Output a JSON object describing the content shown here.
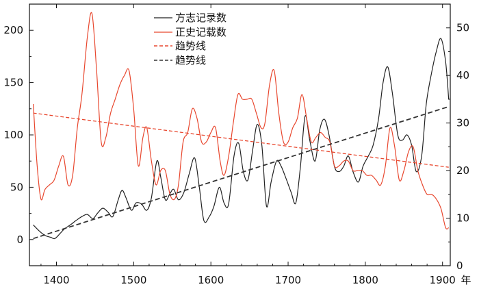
{
  "chart_data": {
    "type": "line",
    "title": "",
    "xlabel": "年",
    "ylabel_left": "",
    "ylabel_right": "",
    "xlim": [
      1365,
      1910
    ],
    "ylim_left": [
      -25,
      225
    ],
    "ylim_right": [
      0,
      55
    ],
    "x_ticks": [
      1400,
      1500,
      1600,
      1700,
      1800,
      1900
    ],
    "y_left_ticks": [
      0,
      50,
      100,
      150,
      200
    ],
    "y_right_ticks": [
      0,
      10,
      20,
      30,
      40,
      50
    ],
    "grid": false,
    "legend_position": "top-center",
    "series": [
      {
        "name": "方志记录数",
        "axis": "left",
        "color": "#222222",
        "style": "solid",
        "x": [
          1370,
          1378,
          1385,
          1393,
          1398,
          1405,
          1410,
          1418,
          1425,
          1433,
          1440,
          1447,
          1453,
          1460,
          1467,
          1473,
          1480,
          1485,
          1490,
          1497,
          1503,
          1510,
          1517,
          1523,
          1530,
          1535,
          1541,
          1547,
          1552,
          1558,
          1565,
          1572,
          1579,
          1585,
          1591,
          1598,
          1604,
          1611,
          1617,
          1623,
          1630,
          1636,
          1642,
          1648,
          1654,
          1660,
          1666,
          1672,
          1678,
          1685,
          1691,
          1698,
          1704,
          1710,
          1716,
          1722,
          1728,
          1735,
          1741,
          1747,
          1753,
          1760,
          1766,
          1772,
          1778,
          1784,
          1791,
          1797,
          1804,
          1810,
          1817,
          1823,
          1829,
          1835,
          1842,
          1848,
          1854,
          1860,
          1866,
          1873,
          1879,
          1886,
          1892,
          1898,
          1904,
          1908
        ],
        "y": [
          14,
          8,
          4,
          2,
          1,
          6,
          10,
          14,
          18,
          22,
          24,
          20,
          25,
          30,
          26,
          22,
          38,
          47,
          40,
          28,
          35,
          34,
          28,
          40,
          75,
          60,
          38,
          44,
          48,
          38,
          45,
          63,
          78,
          50,
          18,
          22,
          32,
          50,
          35,
          34,
          80,
          92,
          65,
          57,
          85,
          110,
          90,
          32,
          55,
          75,
          70,
          57,
          45,
          35,
          70,
          118,
          95,
          75,
          105,
          115,
          100,
          70,
          65,
          70,
          80,
          65,
          55,
          70,
          80,
          90,
          115,
          150,
          165,
          140,
          100,
          95,
          100,
          90,
          65,
          80,
          130,
          160,
          180,
          192,
          170,
          134
        ]
      },
      {
        "name": "正史记载数",
        "axis": "right",
        "color": "#e8472e",
        "style": "solid",
        "x": [
          1370,
          1375,
          1380,
          1385,
          1391,
          1397,
          1403,
          1409,
          1415,
          1421,
          1427,
          1433,
          1440,
          1446,
          1452,
          1458,
          1464,
          1470,
          1476,
          1482,
          1488,
          1494,
          1500,
          1506,
          1512,
          1517,
          1523,
          1529,
          1535,
          1541,
          1547,
          1553,
          1558,
          1564,
          1570,
          1576,
          1582,
          1588,
          1594,
          1600,
          1606,
          1612,
          1617,
          1623,
          1629,
          1635,
          1641,
          1647,
          1653,
          1659,
          1665,
          1670,
          1676,
          1682,
          1688,
          1694,
          1700,
          1706,
          1712,
          1718,
          1724,
          1730,
          1736,
          1742,
          1748,
          1754,
          1760,
          1766,
          1772,
          1778,
          1784,
          1790,
          1796,
          1802,
          1808,
          1814,
          1820,
          1826,
          1832,
          1838,
          1844,
          1850,
          1856,
          1862,
          1868,
          1874,
          1880,
          1886,
          1892,
          1898,
          1904,
          1908
        ],
        "y": [
          34,
          21,
          14,
          16,
          17,
          18,
          21,
          23,
          17,
          19,
          29,
          36,
          48,
          53,
          41,
          26,
          27,
          32,
          35,
          38,
          40,
          41,
          33,
          21,
          27,
          29,
          22,
          17,
          20,
          20,
          15,
          14,
          17,
          26,
          28,
          33,
          31,
          26,
          26,
          28,
          29,
          22,
          19,
          23,
          30,
          36,
          35,
          35,
          35,
          32,
          29,
          30,
          38,
          41,
          32,
          26,
          26,
          29,
          31,
          36,
          31,
          26,
          27,
          28,
          27,
          26,
          21,
          21,
          22,
          22,
          20,
          20,
          20,
          19,
          19,
          18,
          17,
          21,
          29,
          25,
          18,
          20,
          24,
          25,
          20,
          17,
          15,
          15,
          14,
          12,
          8,
          8
        ]
      },
      {
        "name": "趋势线",
        "axis": "right",
        "color": "#e8472e",
        "style": "dashed",
        "x": [
          1370,
          1908
        ],
        "y": [
          32.1,
          20.7
        ]
      },
      {
        "name": "趋势线",
        "axis": "left",
        "color": "#333333",
        "style": "dashed",
        "x": [
          1370,
          1908
        ],
        "y": [
          1,
          127
        ]
      }
    ]
  }
}
